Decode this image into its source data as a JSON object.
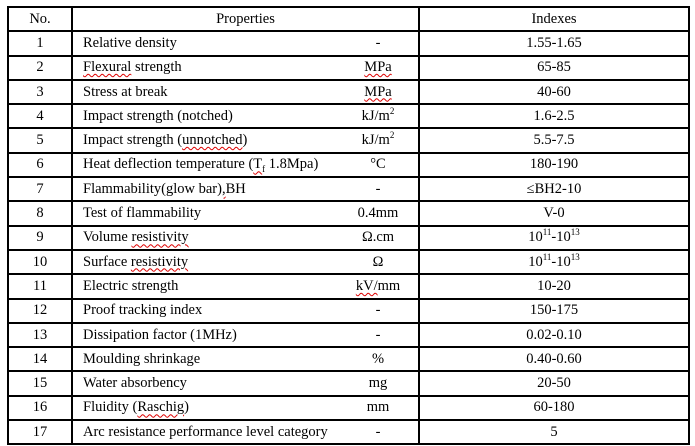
{
  "table": {
    "headers": {
      "no": "No.",
      "properties": "Properties",
      "indexes": "Indexes"
    },
    "rows": [
      {
        "no": "1",
        "property": [
          {
            "t": "Relative density"
          }
        ],
        "unit": [
          {
            "t": "-"
          }
        ],
        "index": [
          {
            "t": "1.55-1.65"
          }
        ]
      },
      {
        "no": "2",
        "property": [
          {
            "t": "Flexural",
            "w": true
          },
          {
            "t": " strength"
          }
        ],
        "unit": [
          {
            "t": "MPa",
            "w": true
          }
        ],
        "index": [
          {
            "t": "65-85"
          }
        ]
      },
      {
        "no": "3",
        "property": [
          {
            "t": "Stress at break"
          }
        ],
        "unit": [
          {
            "t": "MPa",
            "w": true
          }
        ],
        "index": [
          {
            "t": "40-60"
          }
        ]
      },
      {
        "no": "4",
        "property": [
          {
            "t": "Impact strength (notched)"
          }
        ],
        "unit": [
          {
            "t": "kJ/m"
          },
          {
            "t": "2",
            "s": "sup"
          }
        ],
        "index": [
          {
            "t": "1.6-2.5"
          }
        ]
      },
      {
        "no": "5",
        "property": [
          {
            "t": "Impact strength ("
          },
          {
            "t": "unnotched",
            "w": true
          },
          {
            "t": ")"
          }
        ],
        "unit": [
          {
            "t": "kJ/m"
          },
          {
            "t": "2",
            "s": "sup"
          }
        ],
        "index": [
          {
            "t": "5.5-7.5"
          }
        ]
      },
      {
        "no": "6",
        "property": [
          {
            "t": "Heat deflection temperature ("
          },
          {
            "t": "T",
            "w": true
          },
          {
            "t": "f",
            "s": "sub",
            "w": true
          },
          {
            "t": " 1.8Mpa)"
          }
        ],
        "unit": [
          {
            "t": "°C"
          }
        ],
        "index": [
          {
            "t": "180-190"
          }
        ]
      },
      {
        "no": "7",
        "property": [
          {
            "t": "Flammability(glow bar)"
          },
          {
            "t": ",",
            "w": true
          },
          {
            "t": "BH"
          }
        ],
        "unit": [
          {
            "t": "-"
          }
        ],
        "index": [
          {
            "t": "≤BH2-10"
          }
        ]
      },
      {
        "no": "8",
        "property": [
          {
            "t": "Test of flammability"
          }
        ],
        "unit": [
          {
            "t": "0.4mm"
          }
        ],
        "index": [
          {
            "t": "V-0"
          }
        ]
      },
      {
        "no": "9",
        "property": [
          {
            "t": "Volume "
          },
          {
            "t": "resistivity",
            "w": true
          }
        ],
        "unit": [
          {
            "t": "Ω.cm"
          }
        ],
        "index": [
          {
            "t": "10"
          },
          {
            "t": "11",
            "s": "sup"
          },
          {
            "t": "-10"
          },
          {
            "t": "13",
            "s": "sup"
          }
        ]
      },
      {
        "no": "10",
        "property": [
          {
            "t": "Surface "
          },
          {
            "t": "resistivity",
            "w": true
          }
        ],
        "unit": [
          {
            "t": "Ω"
          }
        ],
        "index": [
          {
            "t": "10"
          },
          {
            "t": "11",
            "s": "sup"
          },
          {
            "t": "-10"
          },
          {
            "t": "13",
            "s": "sup"
          }
        ]
      },
      {
        "no": "11",
        "property": [
          {
            "t": "Electric strength"
          }
        ],
        "unit": [
          {
            "t": "kV/",
            "w": true
          },
          {
            "t": "mm"
          }
        ],
        "index": [
          {
            "t": "10-20"
          }
        ]
      },
      {
        "no": "12",
        "property": [
          {
            "t": "Proof tracking index"
          }
        ],
        "unit": [
          {
            "t": "-"
          }
        ],
        "index": [
          {
            "t": "150-175"
          }
        ]
      },
      {
        "no": "13",
        "property": [
          {
            "t": "Dissipation factor (1MHz)"
          }
        ],
        "unit": [
          {
            "t": "-"
          }
        ],
        "index": [
          {
            "t": "0.02-0.10"
          }
        ]
      },
      {
        "no": "14",
        "property": [
          {
            "t": "Moulding shrinkage"
          }
        ],
        "unit": [
          {
            "t": "%"
          }
        ],
        "index": [
          {
            "t": "0.40-0.60"
          }
        ]
      },
      {
        "no": "15",
        "property": [
          {
            "t": "Water absorbency"
          }
        ],
        "unit": [
          {
            "t": "mg"
          }
        ],
        "index": [
          {
            "t": "20-50"
          }
        ]
      },
      {
        "no": "16",
        "property": [
          {
            "t": "Fluidity ("
          },
          {
            "t": "Raschig",
            "w": true
          },
          {
            "t": ")"
          }
        ],
        "unit": [
          {
            "t": "mm"
          }
        ],
        "index": [
          {
            "t": "60-180"
          }
        ]
      },
      {
        "no": "17",
        "property": [
          {
            "t": "Arc resistance performance level category"
          }
        ],
        "unit": [
          {
            "t": "-"
          }
        ],
        "index": [
          {
            "t": "5"
          }
        ]
      }
    ]
  },
  "colors": {
    "border": "#000000",
    "text": "#000000",
    "background": "#ffffff",
    "spellcheck_squiggle": "#dd0000"
  }
}
